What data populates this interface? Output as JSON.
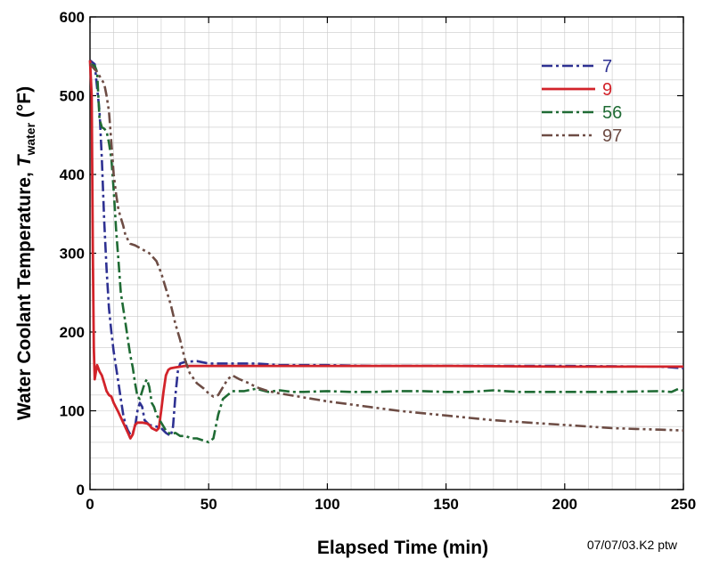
{
  "chart_data": {
    "type": "line",
    "xlabel": "Elapsed Time (min)",
    "ylabel_prefix": "Water Coolant Temperature, ",
    "ylabel_symbol": "T",
    "ylabel_subscript": "water",
    "ylabel_unit": " (°F)",
    "xlim": [
      0,
      250
    ],
    "ylim": [
      0,
      600
    ],
    "xticks": [
      0,
      50,
      100,
      150,
      200,
      250
    ],
    "yticks": [
      0,
      100,
      200,
      300,
      400,
      500,
      600
    ],
    "grid": true,
    "legend_position": "top-right",
    "annotation": "07/07/03.K2 ptw",
    "series": [
      {
        "name": "7",
        "color": "#2e3192",
        "style": "dash-dot",
        "points": [
          [
            0,
            545
          ],
          [
            2,
            540
          ],
          [
            4,
            480
          ],
          [
            5,
            420
          ],
          [
            6,
            340
          ],
          [
            7,
            280
          ],
          [
            8,
            230
          ],
          [
            9,
            200
          ],
          [
            10,
            175
          ],
          [
            11,
            155
          ],
          [
            12,
            135
          ],
          [
            13,
            115
          ],
          [
            14,
            95
          ],
          [
            15,
            82
          ],
          [
            16,
            75
          ],
          [
            17,
            70
          ],
          [
            18,
            72
          ],
          [
            19,
            80
          ],
          [
            20,
            100
          ],
          [
            21,
            110
          ],
          [
            22,
            105
          ],
          [
            23,
            88
          ],
          [
            25,
            82
          ],
          [
            28,
            80
          ],
          [
            30,
            78
          ],
          [
            32,
            72
          ],
          [
            34,
            68
          ],
          [
            35,
            80
          ],
          [
            36,
            120
          ],
          [
            37,
            150
          ],
          [
            38,
            160
          ],
          [
            40,
            162
          ],
          [
            45,
            163
          ],
          [
            50,
            160
          ],
          [
            60,
            160
          ],
          [
            70,
            160
          ],
          [
            80,
            158
          ],
          [
            100,
            158
          ],
          [
            120,
            157
          ],
          [
            150,
            157
          ],
          [
            200,
            157
          ],
          [
            240,
            156
          ],
          [
            250,
            154
          ]
        ]
      },
      {
        "name": "9",
        "color": "#d2232a",
        "style": "solid",
        "points": [
          [
            0,
            545
          ],
          [
            0.7,
            500
          ],
          [
            1.2,
            300
          ],
          [
            1.6,
            180
          ],
          [
            2,
            140
          ],
          [
            2.5,
            150
          ],
          [
            3,
            158
          ],
          [
            4,
            150
          ],
          [
            5,
            145
          ],
          [
            6,
            135
          ],
          [
            7,
            125
          ],
          [
            8,
            120
          ],
          [
            9,
            118
          ],
          [
            10,
            110
          ],
          [
            12,
            98
          ],
          [
            14,
            85
          ],
          [
            16,
            72
          ],
          [
            17,
            65
          ],
          [
            18,
            70
          ],
          [
            19,
            82
          ],
          [
            20,
            85
          ],
          [
            22,
            85
          ],
          [
            24,
            84
          ],
          [
            25,
            82
          ],
          [
            26,
            78
          ],
          [
            28,
            75
          ],
          [
            29,
            78
          ],
          [
            30,
            100
          ],
          [
            31,
            125
          ],
          [
            32,
            145
          ],
          [
            33,
            152
          ],
          [
            34,
            154
          ],
          [
            36,
            155
          ],
          [
            40,
            157
          ],
          [
            50,
            157
          ],
          [
            100,
            157
          ],
          [
            150,
            157
          ],
          [
            200,
            156
          ],
          [
            250,
            156
          ]
        ]
      },
      {
        "name": "56",
        "color": "#1f6b34",
        "style": "dash-dot",
        "points": [
          [
            0,
            540
          ],
          [
            2,
            538
          ],
          [
            3,
            530
          ],
          [
            4,
            470
          ],
          [
            5,
            460
          ],
          [
            6,
            458
          ],
          [
            7,
            455
          ],
          [
            8,
            440
          ],
          [
            9,
            420
          ],
          [
            10,
            380
          ],
          [
            11,
            330
          ],
          [
            12,
            290
          ],
          [
            13,
            250
          ],
          [
            14,
            230
          ],
          [
            15,
            210
          ],
          [
            16,
            190
          ],
          [
            17,
            170
          ],
          [
            18,
            155
          ],
          [
            19,
            135
          ],
          [
            20,
            118
          ],
          [
            21,
            115
          ],
          [
            22,
            125
          ],
          [
            23,
            135
          ],
          [
            24,
            140
          ],
          [
            25,
            130
          ],
          [
            26,
            110
          ],
          [
            27,
            105
          ],
          [
            28,
            95
          ],
          [
            30,
            85
          ],
          [
            32,
            75
          ],
          [
            34,
            70
          ],
          [
            36,
            72
          ],
          [
            38,
            68
          ],
          [
            40,
            68
          ],
          [
            43,
            65
          ],
          [
            45,
            65
          ],
          [
            48,
            62
          ],
          [
            50,
            60
          ],
          [
            52,
            65
          ],
          [
            54,
            95
          ],
          [
            56,
            115
          ],
          [
            58,
            120
          ],
          [
            60,
            125
          ],
          [
            65,
            125
          ],
          [
            70,
            128
          ],
          [
            75,
            124
          ],
          [
            80,
            126
          ],
          [
            85,
            124
          ],
          [
            90,
            124
          ],
          [
            100,
            125
          ],
          [
            110,
            124
          ],
          [
            120,
            124
          ],
          [
            130,
            125
          ],
          [
            140,
            125
          ],
          [
            150,
            124
          ],
          [
            160,
            124
          ],
          [
            170,
            126
          ],
          [
            180,
            124
          ],
          [
            200,
            124
          ],
          [
            220,
            124
          ],
          [
            240,
            125
          ],
          [
            245,
            124
          ],
          [
            248,
            128
          ],
          [
            250,
            125
          ]
        ]
      },
      {
        "name": "97",
        "color": "#6d4c44",
        "style": "dash-dot-dot",
        "points": [
          [
            0,
            540
          ],
          [
            3,
            530
          ],
          [
            4,
            525
          ],
          [
            6,
            515
          ],
          [
            7,
            500
          ],
          [
            8,
            480
          ],
          [
            9,
            440
          ],
          [
            10,
            400
          ],
          [
            11,
            375
          ],
          [
            12,
            355
          ],
          [
            13,
            345
          ],
          [
            14,
            335
          ],
          [
            15,
            322
          ],
          [
            17,
            312
          ],
          [
            19,
            310
          ],
          [
            22,
            305
          ],
          [
            25,
            300
          ],
          [
            28,
            290
          ],
          [
            30,
            275
          ],
          [
            32,
            255
          ],
          [
            34,
            235
          ],
          [
            36,
            210
          ],
          [
            38,
            190
          ],
          [
            40,
            165
          ],
          [
            42,
            148
          ],
          [
            45,
            135
          ],
          [
            48,
            128
          ],
          [
            50,
            122
          ],
          [
            52,
            118
          ],
          [
            54,
            120
          ],
          [
            56,
            130
          ],
          [
            58,
            140
          ],
          [
            60,
            145
          ],
          [
            63,
            140
          ],
          [
            67,
            135
          ],
          [
            70,
            130
          ],
          [
            75,
            125
          ],
          [
            80,
            122
          ],
          [
            90,
            117
          ],
          [
            100,
            112
          ],
          [
            110,
            108
          ],
          [
            120,
            104
          ],
          [
            130,
            100
          ],
          [
            140,
            97
          ],
          [
            150,
            94
          ],
          [
            160,
            91
          ],
          [
            170,
            88
          ],
          [
            180,
            86
          ],
          [
            190,
            84
          ],
          [
            200,
            82
          ],
          [
            210,
            80
          ],
          [
            220,
            78
          ],
          [
            230,
            77
          ],
          [
            240,
            76
          ],
          [
            250,
            75
          ]
        ]
      }
    ]
  }
}
